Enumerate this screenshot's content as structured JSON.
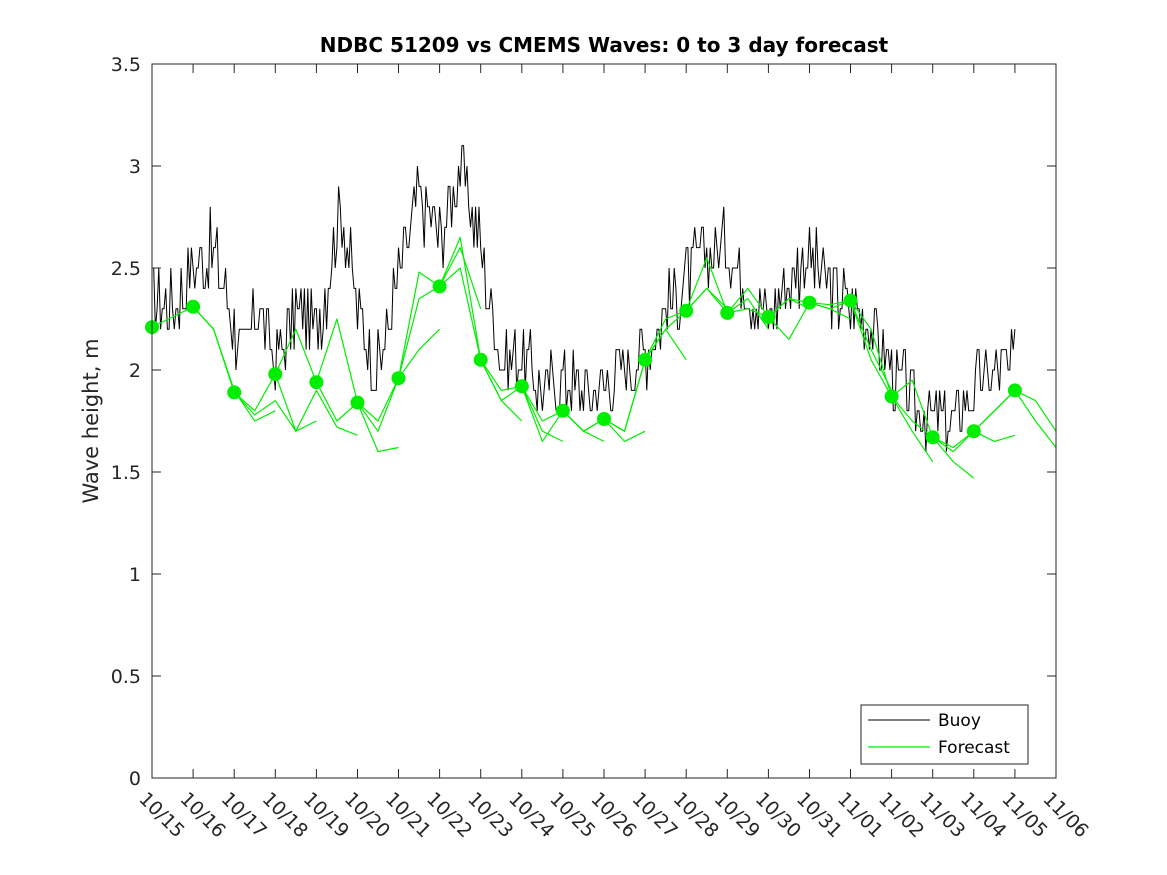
{
  "chart_data": {
    "type": "line",
    "title": "NDBC 51209 vs CMEMS Waves: 0 to 3 day forecast",
    "xlabel": "",
    "ylabel": "Wave height, m",
    "xlim": [
      0,
      22
    ],
    "ylim": [
      0,
      3.5
    ],
    "yticks": [
      0,
      0.5,
      1,
      1.5,
      2,
      2.5,
      3,
      3.5
    ],
    "ytick_labels": [
      "0",
      "0.5",
      "1",
      "1.5",
      "2",
      "2.5",
      "3",
      "3.5"
    ],
    "xtick_labels": [
      "10/15",
      "10/16",
      "10/17",
      "10/18",
      "10/19",
      "10/20",
      "10/21",
      "10/22",
      "10/23",
      "10/24",
      "10/25",
      "10/26",
      "10/27",
      "10/28",
      "10/29",
      "10/30",
      "10/31",
      "11/01",
      "11/02",
      "11/03",
      "11/04",
      "11/05",
      "11/06"
    ],
    "legend": {
      "position": "bottom-right",
      "entries": [
        "Buoy",
        "Forecast"
      ]
    },
    "colors": {
      "buoy": "#000000",
      "forecast": "#00ee00",
      "axis": "#262626"
    },
    "buoy": {
      "name": "Buoy",
      "x": [
        0,
        0.5,
        1,
        1.5,
        2,
        2.3,
        2.6,
        3,
        3.5,
        4,
        4.3,
        4.6,
        5,
        5.5,
        6,
        6.5,
        7,
        7.5,
        8,
        8.5,
        9,
        9.5,
        10,
        10.5,
        11,
        11.5,
        12,
        12.5,
        13,
        13.5,
        14,
        14.5,
        15,
        15.5,
        16,
        16.5,
        17,
        17.5,
        18,
        18.5,
        19,
        19.5,
        20,
        20.5,
        21
      ],
      "values": [
        2.35,
        2.3,
        2.5,
        2.6,
        2.2,
        2.05,
        2.35,
        2.05,
        2.3,
        2.2,
        2.45,
        2.8,
        2.3,
        2.0,
        2.45,
        2.85,
        2.65,
        3.0,
        2.6,
        2.05,
        2.1,
        1.9,
        1.95,
        1.9,
        1.95,
        2.0,
        2.1,
        2.3,
        2.45,
        2.6,
        2.6,
        2.4,
        2.25,
        2.45,
        2.55,
        2.4,
        2.3,
        2.2,
        2.0,
        1.85,
        1.75,
        1.75,
        1.9,
        2.0,
        2.0
      ]
    },
    "forecast_runs": [
      {
        "x": [
          0,
          0.5,
          1,
          1.5,
          2,
          2.5,
          3
        ],
        "values": [
          2.21,
          2.26,
          2.31,
          2.2,
          1.9,
          1.75,
          1.8
        ]
      },
      {
        "x": [
          1,
          1.5,
          2,
          2.5,
          3,
          3.5,
          4
        ],
        "values": [
          2.31,
          2.2,
          1.89,
          1.78,
          1.85,
          1.7,
          1.75
        ]
      },
      {
        "x": [
          2,
          2.5,
          3,
          3.5,
          4,
          4.5,
          5
        ],
        "values": [
          1.89,
          1.8,
          1.98,
          1.7,
          1.9,
          1.72,
          1.68
        ]
      },
      {
        "x": [
          3,
          3.5,
          4,
          4.5,
          5,
          5.5,
          6
        ],
        "values": [
          1.98,
          2.2,
          1.94,
          1.75,
          1.84,
          1.6,
          1.62
        ]
      },
      {
        "x": [
          4,
          4.5,
          5,
          5.5,
          6,
          6.5,
          7
        ],
        "values": [
          1.94,
          2.25,
          1.84,
          1.7,
          1.96,
          2.1,
          2.2
        ]
      },
      {
        "x": [
          5,
          5.5,
          6,
          6.5,
          7,
          7.5,
          8
        ],
        "values": [
          1.84,
          1.75,
          1.96,
          2.48,
          2.41,
          2.6,
          2.3
        ]
      },
      {
        "x": [
          6,
          6.5,
          7,
          7.5,
          8,
          8.5,
          9
        ],
        "values": [
          1.96,
          2.35,
          2.41,
          2.65,
          2.05,
          1.85,
          1.75
        ]
      },
      {
        "x": [
          7,
          7.5,
          8,
          8.5,
          9,
          9.5,
          10
        ],
        "values": [
          2.41,
          2.5,
          2.05,
          1.9,
          1.92,
          1.7,
          1.65
        ]
      },
      {
        "x": [
          8,
          8.5,
          9,
          9.5,
          10,
          10.5,
          11
        ],
        "values": [
          2.05,
          1.85,
          1.92,
          1.65,
          1.8,
          1.7,
          1.65
        ]
      },
      {
        "x": [
          9,
          9.5,
          10,
          10.5,
          11,
          11.5,
          12
        ],
        "values": [
          1.92,
          1.75,
          1.8,
          1.7,
          1.76,
          1.65,
          1.7
        ]
      },
      {
        "x": [
          10,
          10.5,
          11,
          11.5,
          12,
          12.5,
          13
        ],
        "values": [
          1.8,
          1.7,
          1.76,
          1.7,
          2.05,
          2.2,
          2.05
        ]
      },
      {
        "x": [
          11,
          11.5,
          12,
          12.5,
          13,
          13.5,
          14
        ],
        "values": [
          1.76,
          1.7,
          2.05,
          2.25,
          2.29,
          2.4,
          2.3
        ]
      },
      {
        "x": [
          12,
          12.5,
          13,
          13.5,
          14,
          14.5,
          15
        ],
        "values": [
          2.05,
          2.2,
          2.29,
          2.55,
          2.28,
          2.35,
          2.2
        ]
      },
      {
        "x": [
          13,
          13.5,
          14,
          14.5,
          15,
          15.5,
          16
        ],
        "values": [
          2.29,
          2.4,
          2.28,
          2.4,
          2.26,
          2.35,
          2.3
        ]
      },
      {
        "x": [
          14,
          14.5,
          15,
          15.5,
          16,
          16.5,
          17
        ],
        "values": [
          2.28,
          2.3,
          2.26,
          2.35,
          2.33,
          2.3,
          2.25
        ]
      },
      {
        "x": [
          15,
          15.5,
          16,
          16.5,
          17,
          17.5,
          18
        ],
        "values": [
          2.26,
          2.15,
          2.33,
          2.32,
          2.34,
          2.1,
          1.9
        ]
      },
      {
        "x": [
          16,
          16.5,
          17,
          17.5,
          18,
          18.5,
          19
        ],
        "values": [
          2.33,
          2.3,
          2.34,
          2.05,
          1.87,
          1.7,
          1.55
        ]
      },
      {
        "x": [
          17,
          17.5,
          18,
          18.5,
          19,
          19.5,
          20
        ],
        "values": [
          2.34,
          2.2,
          1.87,
          1.75,
          1.67,
          1.55,
          1.47
        ]
      },
      {
        "x": [
          18,
          18.5,
          19,
          19.5,
          20,
          20.5,
          21
        ],
        "values": [
          1.87,
          1.95,
          1.67,
          1.6,
          1.7,
          1.65,
          1.68
        ]
      },
      {
        "x": [
          19,
          19.5,
          20,
          20.5,
          21,
          21.5,
          22
        ],
        "values": [
          1.67,
          1.62,
          1.7,
          1.8,
          1.9,
          1.85,
          1.7
        ]
      },
      {
        "x": [
          20,
          20.5,
          21,
          21.5,
          22
        ],
        "values": [
          1.7,
          1.8,
          1.9,
          1.75,
          1.62
        ]
      }
    ],
    "forecast_points": {
      "name": "Forecast",
      "x": [
        0,
        1,
        2,
        3,
        4,
        5,
        6,
        7,
        8,
        9,
        10,
        11,
        12,
        13,
        14,
        15,
        16,
        17,
        18,
        19,
        20,
        21
      ],
      "values": [
        2.21,
        2.31,
        1.89,
        1.98,
        1.94,
        1.84,
        1.96,
        2.41,
        2.05,
        1.92,
        1.8,
        1.76,
        2.05,
        2.29,
        2.28,
        2.26,
        2.33,
        2.34,
        1.87,
        1.67,
        1.7,
        1.9
      ]
    }
  }
}
